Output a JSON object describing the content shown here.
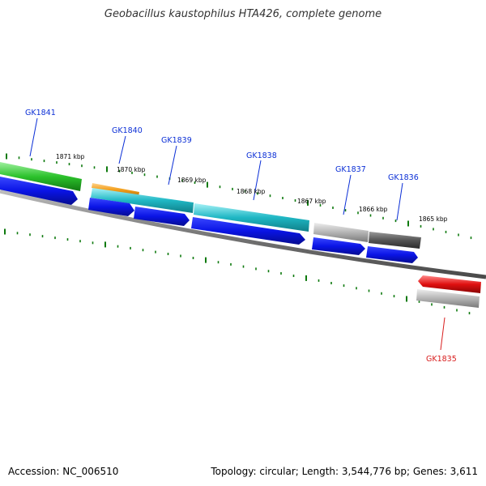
{
  "title": "Geobacillus kaustophilus HTA426, complete genome",
  "footer": {
    "accession": "Accession: NC_006510",
    "summary": "Topology: circular; Length: 3,544,776 bp; Genes: 3,611"
  },
  "kbp_labels": [
    "1871 kbp",
    "1870 kbp",
    "1869 kbp",
    "1868 kbp",
    "1867 kbp",
    "1866 kbp",
    "1865 kbp"
  ],
  "genes": [
    {
      "id": "GK1841",
      "color": "#2cc22c"
    },
    {
      "id": "GK1840",
      "color": "#f29e1a"
    },
    {
      "id": "GK1839",
      "color": "#1fb7c4"
    },
    {
      "id": "GK1838",
      "color": "#1fb7c4"
    },
    {
      "id": "GK1837",
      "color": "#b0b0b0"
    },
    {
      "id": "GK1836",
      "color": "#555555"
    },
    {
      "id": "GK1835",
      "color": "#e01010"
    }
  ],
  "colors": {
    "cds_blue": "#0a14e6",
    "backbone": "#777777",
    "tick_green": "#0e7a0e",
    "label_blue": "#0b2fd6",
    "label_red": "#d81c1c"
  }
}
